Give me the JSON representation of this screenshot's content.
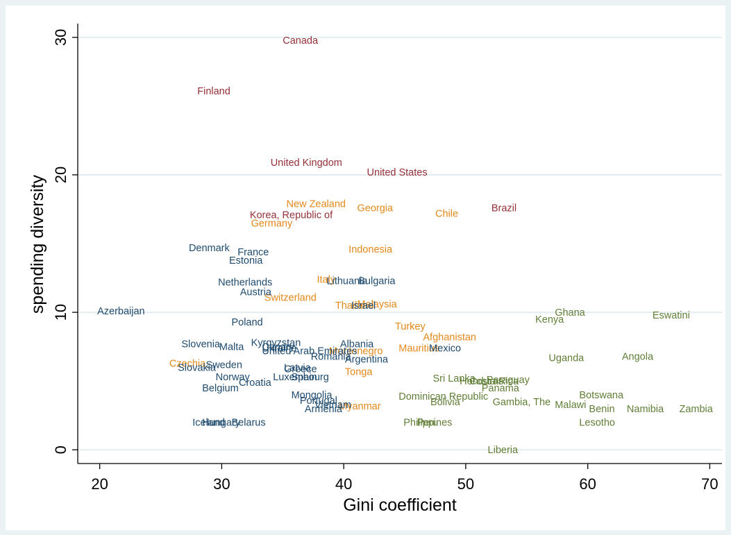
{
  "chart_data": {
    "type": "scatter",
    "title": "",
    "xlabel": "Gini coefficient",
    "ylabel": "spending diversity",
    "xlim": [
      18.2,
      71
    ],
    "ylim": [
      -1,
      30.8
    ],
    "xticks": [
      20,
      30,
      40,
      50,
      60,
      70
    ],
    "yticks": [
      0,
      10,
      20,
      30
    ],
    "grid": "horizontal",
    "legend": "none",
    "colors": {
      "plot_bg": "#ffffff",
      "outer_bg": "#eaf2f3",
      "grid": "#e3eef0",
      "group1": "#943038",
      "group2": "#e3881a",
      "group3": "#1e4a6e",
      "group4": "#617e37"
    },
    "points": [
      {
        "label": "Canada",
        "x": 35,
        "y": 29.8,
        "group": 1
      },
      {
        "label": "Finland",
        "x": 28,
        "y": 26.1,
        "group": 1
      },
      {
        "label": "United Kingdom",
        "x": 34,
        "y": 20.9,
        "group": 1
      },
      {
        "label": "United States",
        "x": 41.9,
        "y": 20.2,
        "group": 1
      },
      {
        "label": "Korea, Republic of",
        "x": 32.3,
        "y": 17.1,
        "group": 1
      },
      {
        "label": "Brazil",
        "x": 52.1,
        "y": 17.6,
        "group": 1
      },
      {
        "label": "New Zealand",
        "x": 35.3,
        "y": 17.9,
        "group": 2
      },
      {
        "label": "Georgia",
        "x": 41.1,
        "y": 17.6,
        "group": 2
      },
      {
        "label": "Chile",
        "x": 47.5,
        "y": 17.2,
        "group": 2
      },
      {
        "label": "Germany",
        "x": 32.4,
        "y": 16.5,
        "group": 2
      },
      {
        "label": "Indonesia",
        "x": 40.4,
        "y": 14.6,
        "group": 2
      },
      {
        "label": "Italy",
        "x": 37.8,
        "y": 12.4,
        "group": 2
      },
      {
        "label": "Switzerland",
        "x": 33.5,
        "y": 11.1,
        "group": 2
      },
      {
        "label": "Thailand",
        "x": 39.3,
        "y": 10.5,
        "group": 2
      },
      {
        "label": "Malaysia",
        "x": 41.1,
        "y": 10.6,
        "group": 2
      },
      {
        "label": "Turkey",
        "x": 44.2,
        "y": 9.0,
        "group": 2
      },
      {
        "label": "Afghanistan",
        "x": 46.5,
        "y": 8.2,
        "group": 2
      },
      {
        "label": "Mauritius",
        "x": 44.5,
        "y": 7.4,
        "group": 2
      },
      {
        "label": "Montenegro",
        "x": 38.8,
        "y": 7.2,
        "group": 2
      },
      {
        "label": "Czechia",
        "x": 25.7,
        "y": 6.3,
        "group": 2
      },
      {
        "label": "Tonga",
        "x": 40.1,
        "y": 5.7,
        "group": 2
      },
      {
        "label": "Myanmar",
        "x": 39.6,
        "y": 3.2,
        "group": 2
      },
      {
        "label": "Denmark",
        "x": 27.3,
        "y": 14.7,
        "group": 3
      },
      {
        "label": "France",
        "x": 31.3,
        "y": 14.4,
        "group": 3
      },
      {
        "label": "Estonia",
        "x": 30.6,
        "y": 13.8,
        "group": 3
      },
      {
        "label": "Netherlands",
        "x": 29.7,
        "y": 12.2,
        "group": 3
      },
      {
        "label": "Lithuania",
        "x": 38.6,
        "y": 12.3,
        "group": 3
      },
      {
        "label": "Bulgaria",
        "x": 41.2,
        "y": 12.3,
        "group": 3
      },
      {
        "label": "Austria",
        "x": 31.5,
        "y": 11.5,
        "group": 3
      },
      {
        "label": "Israel",
        "x": 40.6,
        "y": 10.5,
        "group": 3
      },
      {
        "label": "Azerbaijan",
        "x": 19.8,
        "y": 10.1,
        "group": 3
      },
      {
        "label": "Poland",
        "x": 30.8,
        "y": 9.3,
        "group": 3
      },
      {
        "label": "Kyrgyzstan",
        "x": 32.4,
        "y": 7.8,
        "group": 3
      },
      {
        "label": "Albania",
        "x": 39.7,
        "y": 7.7,
        "group": 3
      },
      {
        "label": "Slovenia",
        "x": 26.7,
        "y": 7.7,
        "group": 3
      },
      {
        "label": "Malta",
        "x": 29.8,
        "y": 7.5,
        "group": 3
      },
      {
        "label": "Ukraine",
        "x": 33.3,
        "y": 7.4,
        "group": 3
      },
      {
        "label": "Canary",
        "x": 33.3,
        "y": 7.5,
        "group": 3
      },
      {
        "label": "United Arab Emirates",
        "x": 33.3,
        "y": 7.2,
        "group": 3
      },
      {
        "label": "Mexico",
        "x": 47,
        "y": 7.4,
        "group": 3
      },
      {
        "label": "Romania",
        "x": 37.3,
        "y": 6.8,
        "group": 3
      },
      {
        "label": "Argentina",
        "x": 40.1,
        "y": 6.6,
        "group": 3
      },
      {
        "label": "Sweden",
        "x": 28.7,
        "y": 6.2,
        "group": 3
      },
      {
        "label": "Slovakia",
        "x": 26.4,
        "y": 6.0,
        "group": 3
      },
      {
        "label": "Latvia",
        "x": 35.1,
        "y": 6.0,
        "group": 3
      },
      {
        "label": "Greece",
        "x": 35.1,
        "y": 5.9,
        "group": 3
      },
      {
        "label": "Norway",
        "x": 29.5,
        "y": 5.3,
        "group": 3
      },
      {
        "label": "Luxembourg",
        "x": 34.2,
        "y": 5.3,
        "group": 3
      },
      {
        "label": "Spain",
        "x": 35.7,
        "y": 5.3,
        "group": 3
      },
      {
        "label": "Croatia",
        "x": 31.4,
        "y": 4.9,
        "group": 3
      },
      {
        "label": "Belgium",
        "x": 28.4,
        "y": 4.5,
        "group": 3
      },
      {
        "label": "Mongolia",
        "x": 35.7,
        "y": 4.0,
        "group": 3
      },
      {
        "label": "Portugal",
        "x": 36.4,
        "y": 3.6,
        "group": 3
      },
      {
        "label": "Vietnam",
        "x": 37.6,
        "y": 3.3,
        "group": 3
      },
      {
        "label": "Armenia",
        "x": 36.8,
        "y": 3.0,
        "group": 3
      },
      {
        "label": "Iceland",
        "x": 27.6,
        "y": 2.0,
        "group": 3
      },
      {
        "label": "Hungary",
        "x": 28.4,
        "y": 2.0,
        "group": 3
      },
      {
        "label": "Belarus",
        "x": 30.8,
        "y": 2.0,
        "group": 3
      },
      {
        "label": "Ghana",
        "x": 57.3,
        "y": 10.0,
        "group": 4
      },
      {
        "label": "Eswatini",
        "x": 65.3,
        "y": 9.8,
        "group": 4
      },
      {
        "label": "Kenya",
        "x": 55.7,
        "y": 9.5,
        "group": 4
      },
      {
        "label": "Uganda",
        "x": 56.8,
        "y": 6.7,
        "group": 4
      },
      {
        "label": "Angola",
        "x": 62.8,
        "y": 6.8,
        "group": 4
      },
      {
        "label": "Sri Lanka",
        "x": 47.3,
        "y": 5.2,
        "group": 4
      },
      {
        "label": "Honduras",
        "x": 49.5,
        "y": 5.0,
        "group": 4
      },
      {
        "label": "Costa Rica",
        "x": 50.3,
        "y": 5.0,
        "group": 4
      },
      {
        "label": "Paraguay",
        "x": 51.7,
        "y": 5.1,
        "group": 4
      },
      {
        "label": "Panama",
        "x": 51.3,
        "y": 4.5,
        "group": 4
      },
      {
        "label": "Dominican Republic",
        "x": 44.5,
        "y": 3.9,
        "group": 4
      },
      {
        "label": "Bolivia",
        "x": 47.1,
        "y": 3.5,
        "group": 4
      },
      {
        "label": "Gambia, The",
        "x": 52.2,
        "y": 3.5,
        "group": 4
      },
      {
        "label": "Botswana",
        "x": 59.3,
        "y": 4.0,
        "group": 4
      },
      {
        "label": "Malawi",
        "x": 57.3,
        "y": 3.3,
        "group": 4
      },
      {
        "label": "Benin",
        "x": 60.1,
        "y": 3.0,
        "group": 4
      },
      {
        "label": "Namibia",
        "x": 63.2,
        "y": 3.0,
        "group": 4
      },
      {
        "label": "Zambia",
        "x": 67.5,
        "y": 3.0,
        "group": 4
      },
      {
        "label": "Philippines",
        "x": 44.9,
        "y": 2.0,
        "group": 4
      },
      {
        "label": "Peru",
        "x": 46,
        "y": 2.0,
        "group": 4
      },
      {
        "label": "Lesotho",
        "x": 59.3,
        "y": 2.0,
        "group": 4
      },
      {
        "label": "Liberia",
        "x": 51.8,
        "y": 0.0,
        "group": 4
      }
    ]
  }
}
